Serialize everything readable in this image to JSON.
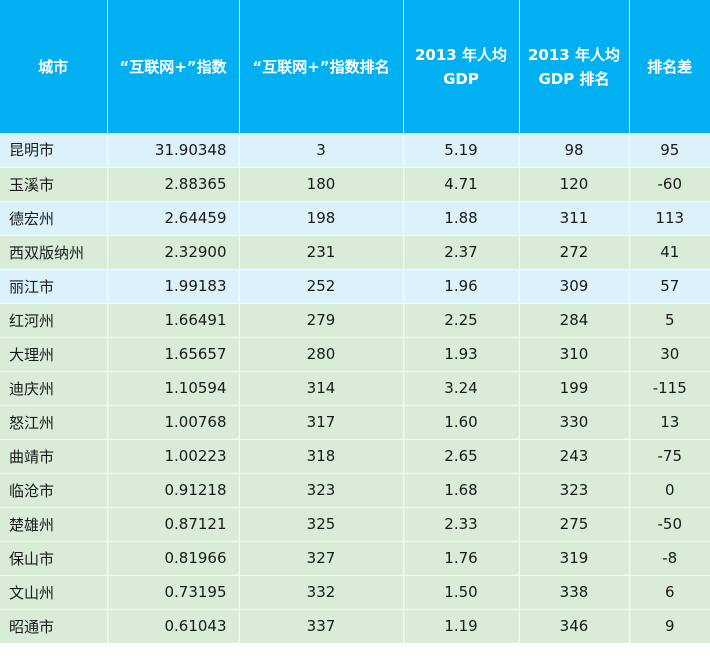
{
  "colors": {
    "header_bg": "#00b0f0",
    "header_text": "#ffffff",
    "row_light": "#ddf1fa",
    "row_green": "#d8ecd8"
  },
  "headers": {
    "city": "城市",
    "index": "“互联网+”指数",
    "index_rank": "“互联网+”指数排名",
    "gdp_line1": "2013 年人均",
    "gdp_line2": "GDP",
    "gdp_rank_line1": "2013 年人均",
    "gdp_rank_line2": "GDP 排名",
    "rank_diff": "排名差"
  },
  "rows": [
    {
      "city": "昆明市",
      "index": "31.90348",
      "index_rank": "3",
      "gdp": "5.19",
      "gdp_rank": "98",
      "diff": "95",
      "shade": "light"
    },
    {
      "city": "玉溪市",
      "index": "2.88365",
      "index_rank": "180",
      "gdp": "4.71",
      "gdp_rank": "120",
      "diff": "-60",
      "shade": "green"
    },
    {
      "city": "德宏州",
      "index": "2.64459",
      "index_rank": "198",
      "gdp": "1.88",
      "gdp_rank": "311",
      "diff": "113",
      "shade": "light"
    },
    {
      "city": "西双版纳州",
      "index": "2.32900",
      "index_rank": "231",
      "gdp": "2.37",
      "gdp_rank": "272",
      "diff": "41",
      "shade": "green"
    },
    {
      "city": "丽江市",
      "index": "1.99183",
      "index_rank": "252",
      "gdp": "1.96",
      "gdp_rank": "309",
      "diff": "57",
      "shade": "light"
    },
    {
      "city": "红河州",
      "index": "1.66491",
      "index_rank": "279",
      "gdp": "2.25",
      "gdp_rank": "284",
      "diff": "5",
      "shade": "green"
    },
    {
      "city": "大理州",
      "index": "1.65657",
      "index_rank": "280",
      "gdp": "1.93",
      "gdp_rank": "310",
      "diff": "30",
      "shade": "green"
    },
    {
      "city": "迪庆州",
      "index": "1.10594",
      "index_rank": "314",
      "gdp": "3.24",
      "gdp_rank": "199",
      "diff": "-115",
      "shade": "green"
    },
    {
      "city": "怒江州",
      "index": "1.00768",
      "index_rank": "317",
      "gdp": "1.60",
      "gdp_rank": "330",
      "diff": "13",
      "shade": "green"
    },
    {
      "city": "曲靖市",
      "index": "1.00223",
      "index_rank": "318",
      "gdp": "2.65",
      "gdp_rank": "243",
      "diff": "-75",
      "shade": "green"
    },
    {
      "city": "临沧市",
      "index": "0.91218",
      "index_rank": "323",
      "gdp": "1.68",
      "gdp_rank": "323",
      "diff": "0",
      "shade": "green"
    },
    {
      "city": "楚雄州",
      "index": "0.87121",
      "index_rank": "325",
      "gdp": "2.33",
      "gdp_rank": "275",
      "diff": "-50",
      "shade": "green"
    },
    {
      "city": "保山市",
      "index": "0.81966",
      "index_rank": "327",
      "gdp": "1.76",
      "gdp_rank": "319",
      "diff": "-8",
      "shade": "green"
    },
    {
      "city": "文山州",
      "index": "0.73195",
      "index_rank": "332",
      "gdp": "1.50",
      "gdp_rank": "338",
      "diff": "6",
      "shade": "green"
    },
    {
      "city": "昭通市",
      "index": "0.61043",
      "index_rank": "337",
      "gdp": "1.19",
      "gdp_rank": "346",
      "diff": "9",
      "shade": "green"
    }
  ]
}
